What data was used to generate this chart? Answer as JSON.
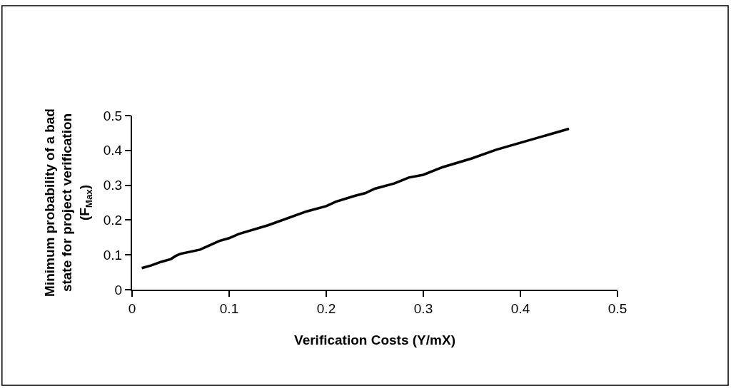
{
  "chart_data": {
    "type": "line",
    "xlabel": "Verification Costs (Y/mX)",
    "ylabel": "Minimum probability of a bad state for project verification (F$_{Max}$)",
    "x": [
      0.01,
      0.02,
      0.025,
      0.03,
      0.04,
      0.045,
      0.05,
      0.07,
      0.09,
      0.1,
      0.11,
      0.14,
      0.18,
      0.2,
      0.21,
      0.23,
      0.24,
      0.25,
      0.27,
      0.285,
      0.3,
      0.32,
      0.35,
      0.375,
      0.45
    ],
    "series": [
      {
        "color": "#000000",
        "values": [
          0.062,
          0.07,
          0.075,
          0.08,
          0.088,
          0.097,
          0.103,
          0.115,
          0.14,
          0.148,
          0.16,
          0.185,
          0.225,
          0.24,
          0.253,
          0.27,
          0.277,
          0.29,
          0.305,
          0.322,
          0.33,
          0.352,
          0.377,
          0.402,
          0.462
        ]
      }
    ],
    "xlim": [
      0,
      0.5
    ],
    "xticks": [
      0,
      0.1,
      0.2,
      0.3,
      0.4,
      0.5
    ],
    "ylim": [
      0,
      0.5
    ],
    "yticks": [
      0,
      0.1,
      0.2,
      0.3,
      0.4,
      0.5
    ],
    "line_style": "solid",
    "marker": "none"
  }
}
